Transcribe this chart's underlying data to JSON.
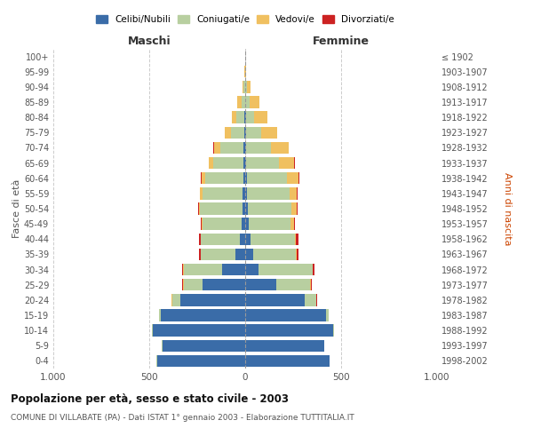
{
  "age_groups": [
    "0-4",
    "5-9",
    "10-14",
    "15-19",
    "20-24",
    "25-29",
    "30-34",
    "35-39",
    "40-44",
    "45-49",
    "50-54",
    "55-59",
    "60-64",
    "65-69",
    "70-74",
    "75-79",
    "80-84",
    "85-89",
    "90-94",
    "95-99",
    "100+"
  ],
  "birth_years": [
    "1998-2002",
    "1993-1997",
    "1988-1992",
    "1983-1987",
    "1978-1982",
    "1973-1977",
    "1968-1972",
    "1963-1967",
    "1958-1962",
    "1953-1957",
    "1948-1952",
    "1943-1947",
    "1938-1942",
    "1933-1937",
    "1928-1932",
    "1923-1927",
    "1918-1922",
    "1913-1917",
    "1908-1912",
    "1903-1907",
    "≤ 1902"
  ],
  "males": {
    "celibi": [
      460,
      430,
      480,
      440,
      340,
      220,
      120,
      50,
      30,
      20,
      14,
      12,
      10,
      8,
      8,
      5,
      5,
      2,
      2,
      0,
      0
    ],
    "coniugati": [
      2,
      3,
      5,
      10,
      40,
      100,
      200,
      180,
      200,
      200,
      220,
      210,
      200,
      160,
      120,
      70,
      40,
      18,
      5,
      2,
      0
    ],
    "vedovi": [
      0,
      0,
      0,
      0,
      2,
      2,
      2,
      2,
      3,
      5,
      8,
      12,
      18,
      20,
      35,
      30,
      25,
      22,
      8,
      2,
      0
    ],
    "divorziati": [
      0,
      0,
      0,
      0,
      2,
      5,
      8,
      10,
      10,
      5,
      2,
      2,
      2,
      2,
      2,
      0,
      0,
      0,
      0,
      0,
      0
    ]
  },
  "females": {
    "nubili": [
      440,
      410,
      460,
      420,
      310,
      160,
      70,
      42,
      28,
      18,
      12,
      10,
      8,
      6,
      5,
      5,
      5,
      2,
      2,
      0,
      0
    ],
    "coniugate": [
      2,
      3,
      5,
      15,
      60,
      180,
      280,
      220,
      230,
      220,
      230,
      220,
      210,
      170,
      130,
      80,
      40,
      22,
      8,
      2,
      0
    ],
    "vedove": [
      0,
      0,
      0,
      0,
      2,
      2,
      2,
      5,
      8,
      15,
      25,
      40,
      60,
      80,
      90,
      80,
      70,
      50,
      18,
      2,
      0
    ],
    "divorziate": [
      0,
      0,
      0,
      0,
      2,
      5,
      10,
      12,
      12,
      8,
      5,
      3,
      3,
      2,
      2,
      0,
      0,
      0,
      0,
      0,
      0
    ]
  },
  "colors": {
    "celibi": "#3a6ca8",
    "coniugati": "#b8cfa0",
    "vedovi": "#f0c060",
    "divorziati": "#cc2222"
  },
  "legend_labels": [
    "Celibi/Nubili",
    "Coniugati/e",
    "Vedovi/e",
    "Divorziati/e"
  ],
  "title": "Popolazione per età, sesso e stato civile - 2003",
  "subtitle": "COMUNE DI VILLABATE (PA) - Dati ISTAT 1° gennaio 2003 - Elaborazione TUTTITALIA.IT",
  "ylabel_left": "Fasce di età",
  "ylabel_right": "Anni di nascita",
  "xlabel_left": "Maschi",
  "xlabel_right": "Femmine",
  "xlim": 1000,
  "bg_color": "#ffffff",
  "grid_color": "#cccccc"
}
